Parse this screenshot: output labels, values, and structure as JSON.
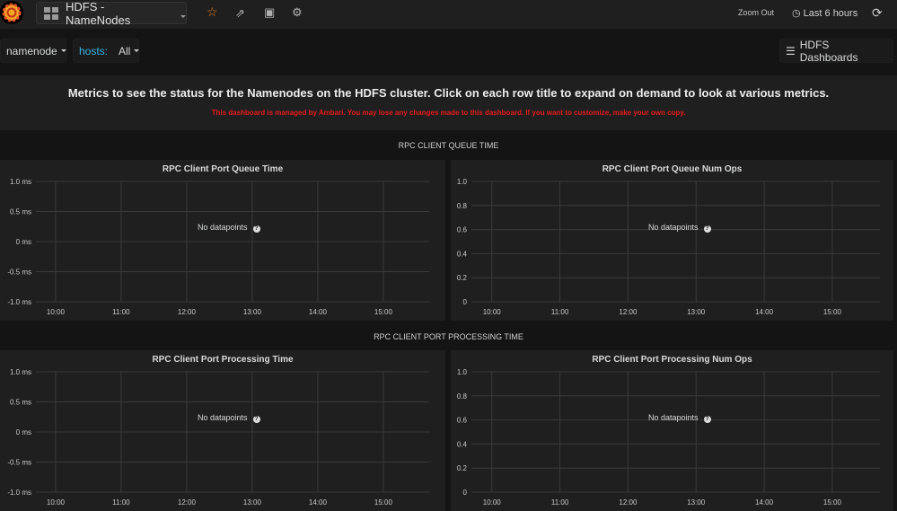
{
  "topnav": {
    "dashboard_title": "HDFS - NameNodes",
    "icons": [
      "grafana-logo",
      "star-icon",
      "share-icon",
      "save-icon",
      "gear-icon",
      "clock-icon",
      "refresh-icon"
    ],
    "zoom_out": "Zoom Out",
    "time_range": "Last 6 hours",
    "star_color": "#eb7b18"
  },
  "submenu": {
    "namenode_label": "namenode",
    "hosts_label": "hosts:",
    "hosts_value": "All",
    "dashboards_label": "HDFS Dashboards",
    "hosts_label_color": "#33b5e5"
  },
  "text_panel": {
    "headline": "Metrics to see the status for the Namenodes on the HDFS cluster. Click on each row title to expand on demand to look at various metrics.",
    "warning": "This dashboard is managed by Ambari. You may lose any changes made to this dashboard. If you want to customize, make your own copy.",
    "warning_color": "#e31c1c"
  },
  "rows": [
    {
      "title": "RPC CLIENT QUEUE TIME"
    },
    {
      "title": "RPC CLIENT PORT PROCESSING TIME"
    }
  ],
  "no_data_text": "No datapoints",
  "chart_data": [
    {
      "type": "line",
      "title": "RPC Client Port Queue Time",
      "series": [],
      "ylim": [
        -1.0,
        1.0
      ],
      "yticks": [
        "1.0 ms",
        "0.5 ms",
        "0 ms",
        "-0.5 ms",
        "-1.0 ms"
      ],
      "xticks": [
        "10:00",
        "11:00",
        "12:00",
        "13:00",
        "14:00",
        "15:00"
      ],
      "xlim": [
        "09:42",
        "15:42"
      ],
      "grid": true
    },
    {
      "type": "line",
      "title": "RPC Client Port Queue Num Ops",
      "series": [],
      "ylim": [
        0,
        1.0
      ],
      "yticks": [
        "1.0",
        "0.8",
        "0.6",
        "0.4",
        "0.2",
        "0"
      ],
      "xticks": [
        "10:00",
        "11:00",
        "12:00",
        "13:00",
        "14:00",
        "15:00"
      ],
      "xlim": [
        "09:42",
        "15:42"
      ],
      "grid": true
    },
    {
      "type": "line",
      "title": "RPC Client Port Processing Time",
      "series": [],
      "ylim": [
        -1.0,
        1.0
      ],
      "yticks": [
        "1.0 ms",
        "0.5 ms",
        "0 ms",
        "-0.5 ms",
        "-1.0 ms"
      ],
      "xticks": [
        "10:00",
        "11:00",
        "12:00",
        "13:00",
        "14:00",
        "15:00"
      ],
      "xlim": [
        "09:42",
        "15:42"
      ],
      "grid": true
    },
    {
      "type": "line",
      "title": "RPC Client Port Processing Num Ops",
      "series": [],
      "ylim": [
        0,
        1.0
      ],
      "yticks": [
        "1.0",
        "0.8",
        "0.6",
        "0.4",
        "0.2",
        "0"
      ],
      "xticks": [
        "10:00",
        "11:00",
        "12:00",
        "13:00",
        "14:00",
        "15:00"
      ],
      "xlim": [
        "09:42",
        "15:42"
      ],
      "grid": true
    }
  ]
}
